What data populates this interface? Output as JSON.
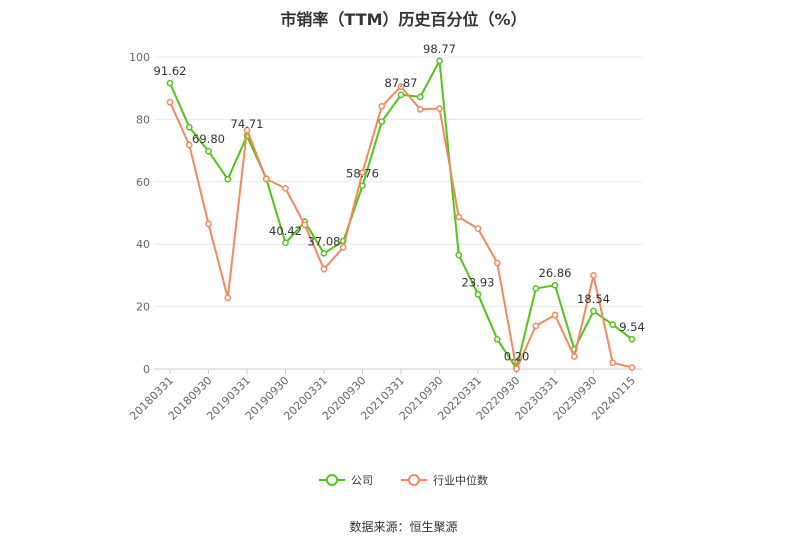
{
  "chart_data": {
    "type": "line",
    "title": "市销率（TTM）历史百分位（%）",
    "ylim": [
      0,
      100
    ],
    "yticks": [
      0,
      20,
      40,
      60,
      80,
      100
    ],
    "x": [
      "20180331",
      "20180630",
      "20180930",
      "20181231",
      "20190331",
      "20190630",
      "20190930",
      "20191231",
      "20200331",
      "20200630",
      "20200930",
      "20201231",
      "20210331",
      "20210630",
      "20210930",
      "20211231",
      "20220331",
      "20220630",
      "20220930",
      "20221231",
      "20230331",
      "20230630",
      "20230930",
      "20231231",
      "20240115"
    ],
    "x_tick_labels": [
      "20180331",
      "20180930",
      "20190331",
      "20190930",
      "20200331",
      "20200930",
      "20210331",
      "20210930",
      "20220331",
      "20220930",
      "20230331",
      "20230930",
      "20240115"
    ],
    "x_tick_indices": [
      0,
      2,
      4,
      6,
      8,
      10,
      12,
      14,
      16,
      18,
      20,
      22,
      24
    ],
    "series": [
      {
        "name": "公司",
        "color": "#52c41a",
        "values": [
          91.62,
          77.5,
          69.8,
          60.8,
          74.71,
          61.0,
          40.42,
          47.2,
          37.08,
          41.0,
          58.76,
          79.3,
          87.87,
          87.2,
          98.77,
          36.5,
          23.93,
          9.5,
          0.2,
          25.8,
          26.86,
          6.3,
          18.54,
          14.2,
          9.54
        ],
        "labels": {
          "0": "91.62",
          "2": "69.80",
          "4": "74.71",
          "6": "40.42",
          "8": "37.08",
          "10": "58.76",
          "12": "87.87",
          "14": "98.77",
          "16": "23.93",
          "18": "0.20",
          "20": "26.86",
          "22": "18.54",
          "24": "9.54"
        }
      },
      {
        "name": "行业中位数",
        "color": "#f08a5d",
        "values": [
          85.5,
          71.8,
          46.5,
          22.8,
          76.6,
          60.9,
          57.9,
          46.2,
          32.0,
          39.0,
          63.0,
          84.2,
          90.5,
          83.2,
          83.5,
          48.7,
          45.0,
          34.0,
          0.0,
          13.8,
          17.3,
          4.0,
          30.0,
          2.0,
          0.5
        ],
        "labels": {}
      }
    ],
    "grid": true,
    "legend_position": "bottom-center"
  },
  "footer": {
    "source": "数据来源：恒生聚源"
  }
}
